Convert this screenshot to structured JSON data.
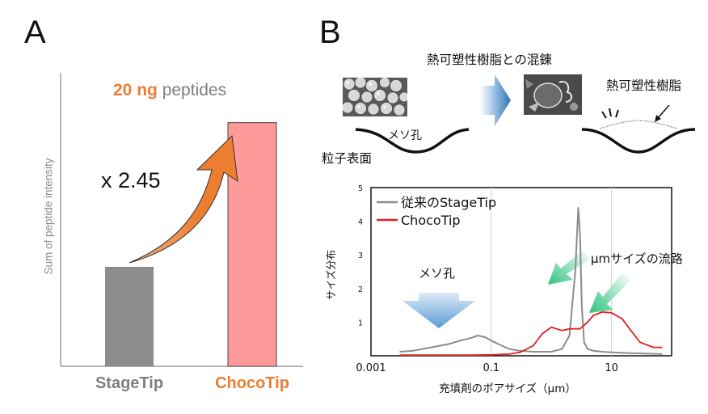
{
  "panel_a": {
    "letter": "A",
    "title_amount": "20 ng",
    "title_rest": "peptides",
    "ylabel": "Sum of peptide intensity",
    "multiplier": "x 2.45",
    "colors": {
      "stagetip": "#8c8c8c",
      "chocotip": "#ff9a9a",
      "accent": "#ed7d31",
      "label_gray": "#7f7f7f"
    }
  },
  "panel_b": {
    "letter": "B",
    "mixing_label": "熱可塑性樹脂との混錬",
    "resin_label": "熱可塑性樹脂",
    "meso_pore_label": "メソ孔",
    "particle_surface_label": "粒子表面"
  },
  "chart_data": [
    {
      "type": "bar",
      "title": "20 ng peptides",
      "xlabel": "",
      "ylabel": "Sum of peptide intensity",
      "categories": [
        "StageTip",
        "ChocoTip"
      ],
      "values": [
        1.0,
        2.45
      ],
      "ylim": [
        0,
        3.0
      ]
    },
    {
      "type": "line",
      "title": "",
      "xlabel": "充填剤のポアサイズ（μm）",
      "ylabel": "サイズ分布",
      "xscale": "log",
      "xlim": [
        0.001,
        100
      ],
      "ylim": [
        0,
        5
      ],
      "xticks": [
        0.001,
        0.1,
        10
      ],
      "xtick_labels": [
        "0.001",
        "0.1",
        "10"
      ],
      "yticks": [
        1,
        2,
        3,
        4,
        5
      ],
      "ytick_labels": [
        "1",
        "2",
        "3",
        "4",
        "5"
      ],
      "legend": "top-left",
      "series": [
        {
          "name": "従来のStageTip",
          "color": "#8c8c8c",
          "x": [
            0.003,
            0.005,
            0.01,
            0.02,
            0.03,
            0.04,
            0.05,
            0.06,
            0.08,
            0.1,
            0.15,
            0.2,
            0.3,
            0.5,
            1,
            1.5,
            2,
            2.5,
            2.8,
            3,
            3.2,
            3.5,
            4,
            5,
            7,
            10,
            20,
            50,
            70
          ],
          "y": [
            0.12,
            0.15,
            0.25,
            0.35,
            0.45,
            0.5,
            0.55,
            0.6,
            0.55,
            0.45,
            0.3,
            0.2,
            0.15,
            0.12,
            0.12,
            0.2,
            0.6,
            2.5,
            4.4,
            3.6,
            1.5,
            0.4,
            0.2,
            0.15,
            0.12,
            0.1,
            0.08,
            0.06,
            0.05
          ],
          "annotation": "メソ孔"
        },
        {
          "name": "ChocoTip",
          "color": "#e02020",
          "x": [
            0.003,
            0.01,
            0.05,
            0.1,
            0.2,
            0.3,
            0.5,
            0.7,
            1,
            1.5,
            2,
            3,
            4,
            5,
            7,
            10,
            15,
            20,
            30,
            50,
            70
          ],
          "y": [
            0.02,
            0.02,
            0.02,
            0.03,
            0.05,
            0.1,
            0.3,
            0.65,
            0.85,
            0.75,
            0.8,
            0.8,
            1.0,
            1.2,
            1.3,
            1.28,
            1.1,
            0.8,
            0.4,
            0.25,
            0.25
          ],
          "annotation": "μmサイズの流路"
        }
      ]
    }
  ]
}
